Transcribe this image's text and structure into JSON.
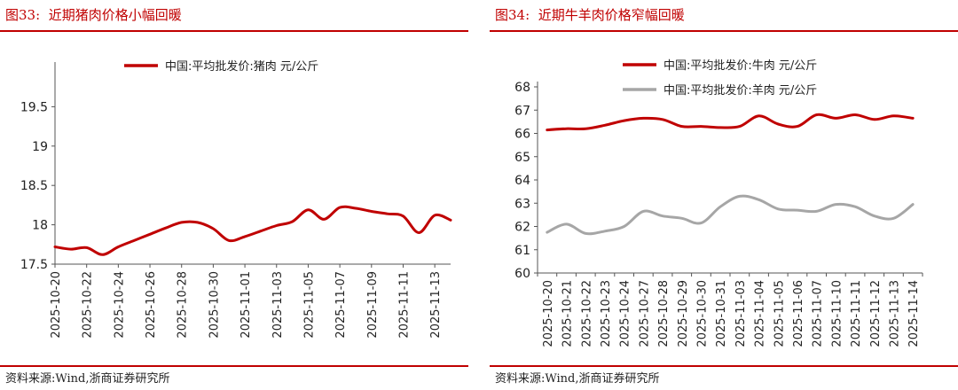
{
  "panels": [
    {
      "figure_label": "图33:",
      "figure_title": "近期猪肉价格小幅回暖",
      "source": "资料来源:Wind,浙商证券研究所"
    },
    {
      "figure_label": "图34:",
      "figure_title": "近期牛羊肉价格窄幅回暖",
      "source": "资料来源:Wind,浙商证券研究所"
    }
  ],
  "chart_data": [
    {
      "type": "line",
      "title": "",
      "xlabel": "",
      "ylabel": "",
      "ylim": [
        17.5,
        20
      ],
      "yticks": [
        17.5,
        18,
        18.5,
        19,
        19.5
      ],
      "xticks": [
        "2025-10-20",
        "2025-10-22",
        "2025-10-24",
        "2025-10-26",
        "2025-10-28",
        "2025-10-30",
        "2025-11-01",
        "2025-11-03",
        "2025-11-05",
        "2025-11-07",
        "2025-11-09",
        "2025-11-11",
        "2025-11-13"
      ],
      "x": [
        "2025-10-20",
        "2025-10-21",
        "2025-10-22",
        "2025-10-23",
        "2025-10-24",
        "2025-10-25",
        "2025-10-26",
        "2025-10-27",
        "2025-10-28",
        "2025-10-29",
        "2025-10-30",
        "2025-10-31",
        "2025-11-01",
        "2025-11-02",
        "2025-11-03",
        "2025-11-04",
        "2025-11-05",
        "2025-11-06",
        "2025-11-07",
        "2025-11-08",
        "2025-11-09",
        "2025-11-10",
        "2025-11-11",
        "2025-11-12",
        "2025-11-13",
        "2025-11-14"
      ],
      "legend_position": "top",
      "grid": false,
      "series": [
        {
          "name": "中国:平均批发价:猪肉 元/公斤",
          "color": "#c00000",
          "values": [
            17.72,
            17.69,
            17.71,
            17.62,
            17.72,
            17.8,
            17.88,
            17.96,
            18.03,
            18.03,
            17.95,
            17.8,
            17.85,
            17.92,
            17.99,
            18.04,
            18.19,
            18.07,
            18.22,
            18.21,
            18.17,
            18.14,
            18.11,
            17.9,
            18.12,
            18.06
          ]
        }
      ]
    },
    {
      "type": "line",
      "title": "",
      "xlabel": "",
      "ylabel": "",
      "ylim": [
        60,
        68
      ],
      "yticks": [
        60,
        61,
        62,
        63,
        64,
        65,
        66,
        67,
        68
      ],
      "x": [
        "2025-10-20",
        "2025-10-21",
        "2025-10-22",
        "2025-10-23",
        "2025-10-24",
        "2025-10-27",
        "2025-10-28",
        "2025-10-29",
        "2025-10-30",
        "2025-10-31",
        "2025-11-03",
        "2025-11-04",
        "2025-11-05",
        "2025-11-06",
        "2025-11-07",
        "2025-11-10",
        "2025-11-11",
        "2025-11-12",
        "2025-11-13",
        "2025-11-14"
      ],
      "legend_position": "top",
      "grid": false,
      "series": [
        {
          "name": "中国:平均批发价:牛肉 元/公斤",
          "color": "#c00000",
          "values": [
            66.15,
            66.2,
            66.2,
            66.35,
            66.55,
            66.65,
            66.6,
            66.3,
            66.3,
            66.25,
            66.3,
            66.75,
            66.4,
            66.3,
            66.8,
            66.65,
            66.8,
            66.6,
            66.75,
            66.65
          ]
        },
        {
          "name": "中国:平均批发价:羊肉 元/公斤",
          "color": "#a6a6a6",
          "values": [
            61.75,
            62.1,
            61.7,
            61.8,
            62.0,
            62.65,
            62.45,
            62.35,
            62.15,
            62.85,
            63.3,
            63.15,
            62.75,
            62.7,
            62.65,
            62.95,
            62.85,
            62.45,
            62.35,
            62.95
          ]
        }
      ]
    }
  ]
}
